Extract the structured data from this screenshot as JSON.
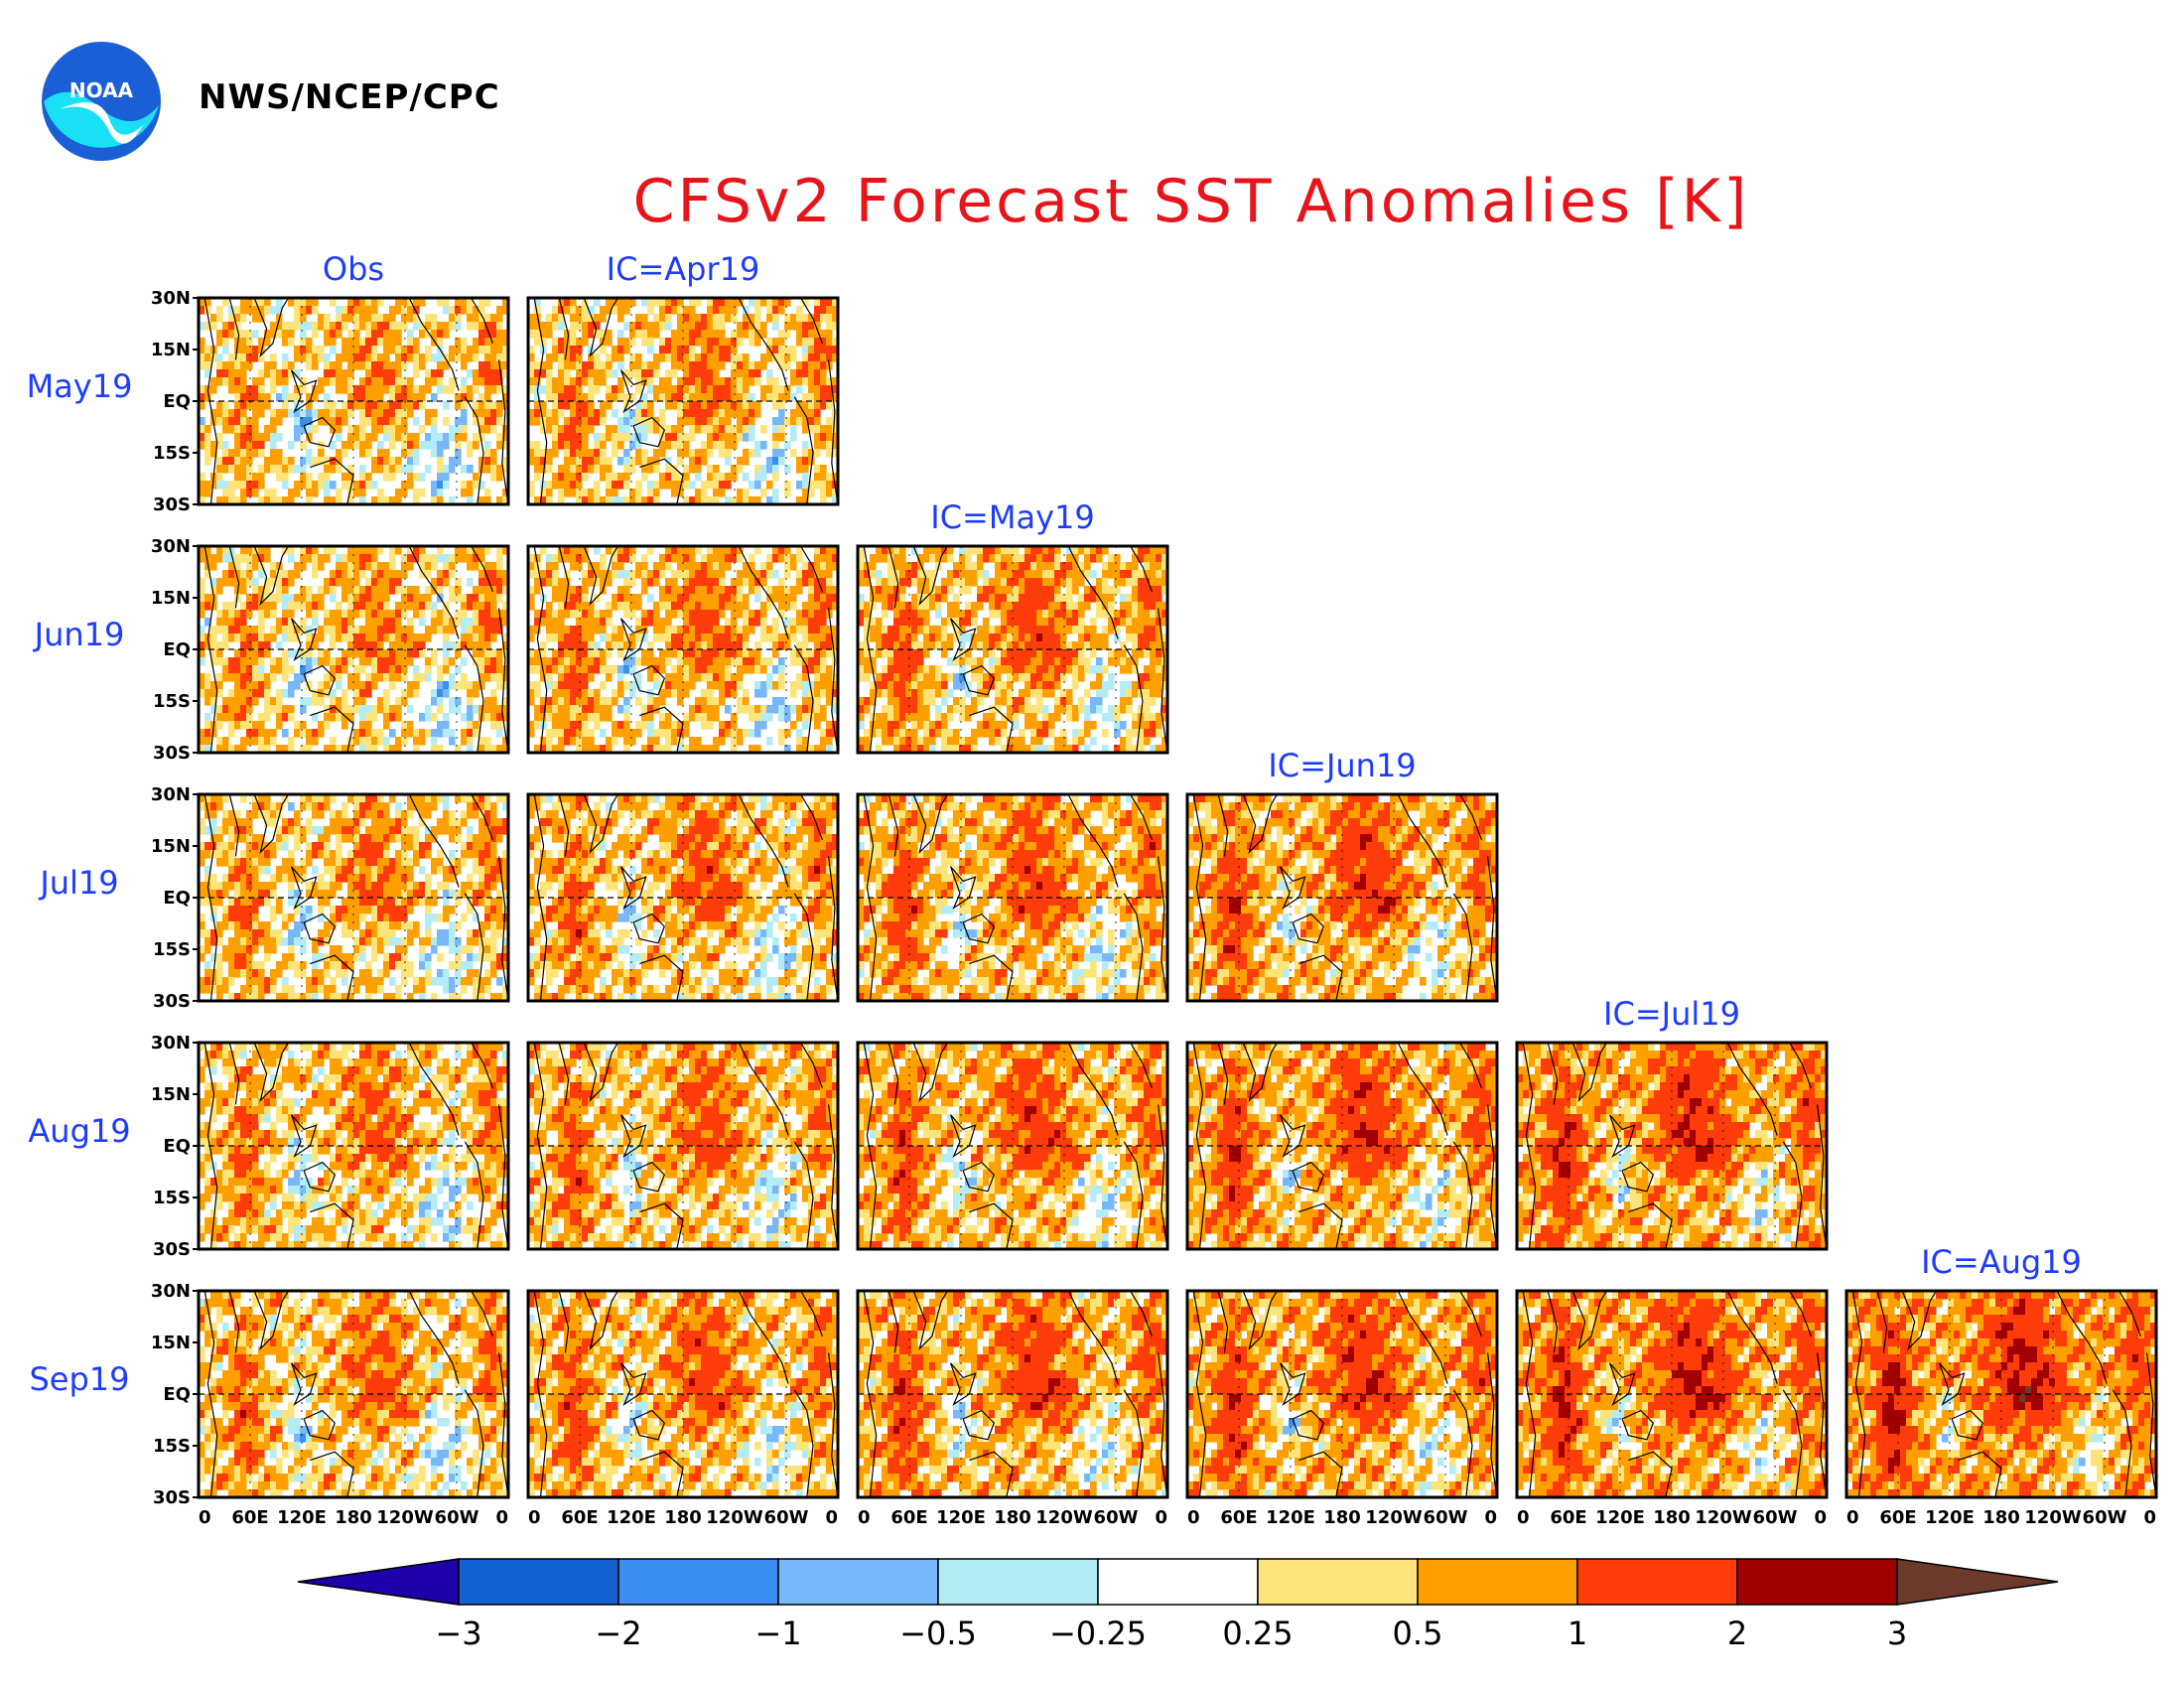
{
  "header": {
    "agency": "NWS/NCEP/CPC",
    "logo_text": "NOAA"
  },
  "chart_data": {
    "type": "heatmap",
    "title": "CFSv2 Forecast SST Anomalies [K]",
    "columns": [
      "Obs",
      "IC=Apr19",
      "IC=May19",
      "IC=Jun19",
      "IC=Jul19",
      "IC=Aug19"
    ],
    "rows": [
      "May19",
      "Jun19",
      "Jul19",
      "Aug19",
      "Sep19"
    ],
    "lat_ticks": [
      "30N",
      "15N",
      "EQ",
      "15S",
      "30S"
    ],
    "lon_ticks": [
      "0",
      "60E",
      "120E",
      "180",
      "120W",
      "60W",
      "0"
    ],
    "colorbar": {
      "levels": [
        "-3",
        "-2",
        "-1",
        "-0.5",
        "-0.25",
        "0.25",
        "0.5",
        "1",
        "2",
        "3"
      ],
      "colors": [
        "#1d00a8",
        "#1560d0",
        "#3a8ef0",
        "#78b8f8",
        "#b4ecf6",
        "#ffffff",
        "#ffe47a",
        "#ffa000",
        "#ff3c0a",
        "#a00000",
        "#6b3a2a"
      ]
    }
  }
}
